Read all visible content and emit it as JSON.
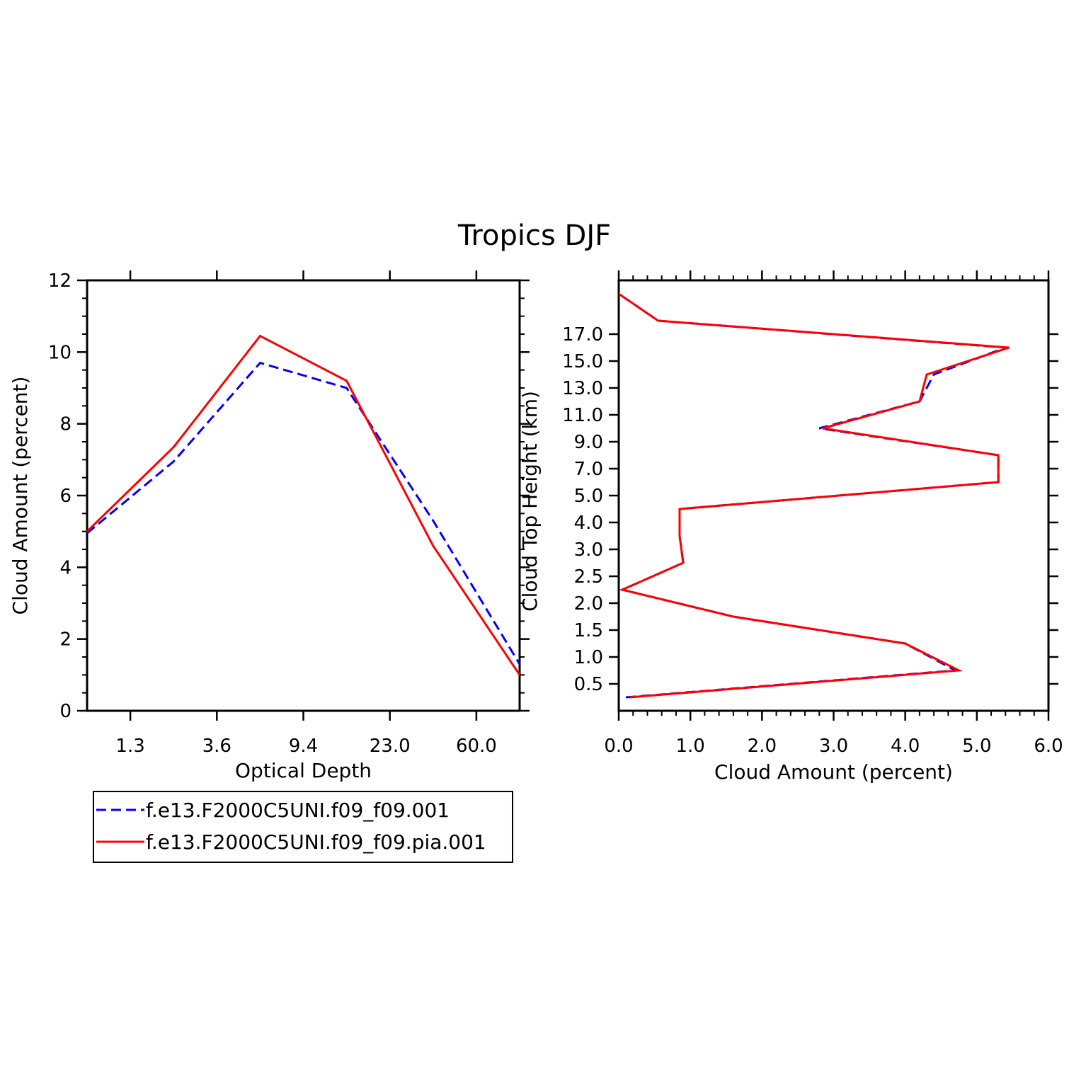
{
  "title": "Tropics DJF",
  "colors": {
    "series_a": "#0000ff",
    "series_b": "#ff0000"
  },
  "legend": [
    {
      "label": "f.e13.F2000C5UNI.f09_f09.001",
      "color": "#0000ff",
      "dash": true
    },
    {
      "label": "f.e13.F2000C5UNI.f09_f09.pia.001",
      "color": "#ff0000",
      "dash": false
    }
  ],
  "chart_data": [
    {
      "type": "line",
      "xlabel": "Optical Depth",
      "ylabel": "Cloud Amount (percent)",
      "x_tick_labels": [
        "1.3",
        "3.6",
        "9.4",
        "23.0",
        "60.0"
      ],
      "x": [
        1,
        2,
        3,
        4,
        5,
        6
      ],
      "ylim": [
        0,
        12
      ],
      "y_ticks": [
        "0",
        "2",
        "4",
        "6",
        "8",
        "10",
        "12"
      ],
      "series": [
        {
          "name": "f.e13.F2000C5UNI.f09_f09.001",
          "values": [
            4.95,
            6.95,
            9.7,
            9.0,
            5.3,
            1.3
          ]
        },
        {
          "name": "f.e13.F2000C5UNI.f09_f09.pia.001",
          "values": [
            5.0,
            7.35,
            10.45,
            9.2,
            4.6,
            1.0
          ]
        }
      ]
    },
    {
      "type": "line",
      "xlabel": "Cloud Amount (percent)",
      "ylabel": "Cloud Top Height (km)",
      "xlim": [
        0,
        6
      ],
      "x_ticks": [
        "0.0",
        "1.0",
        "2.0",
        "3.0",
        "4.0",
        "5.0",
        "6.0"
      ],
      "y_tick_labels": [
        "0.5",
        "1.0",
        "1.5",
        "2.0",
        "2.5",
        "3.0",
        "4.0",
        "5.0",
        "7.0",
        "9.0",
        "11.0",
        "13.0",
        "15.0",
        "17.0"
      ],
      "y": [
        0,
        1,
        2,
        3,
        4,
        5,
        6,
        7,
        8,
        9,
        10,
        11,
        12,
        13,
        14,
        15
      ],
      "series": [
        {
          "name": "f.e13.F2000C5UNI.f09_f09.001",
          "values": [
            0.1,
            4.7,
            4.0,
            1.6,
            0.05,
            0.9,
            0.85,
            0.85,
            5.3,
            5.3,
            2.8,
            4.2,
            4.4,
            5.4,
            0.55,
            0.0
          ]
        },
        {
          "name": "f.e13.F2000C5UNI.f09_f09.pia.001",
          "values": [
            0.15,
            4.75,
            4.0,
            1.6,
            0.05,
            0.9,
            0.85,
            0.85,
            5.3,
            5.3,
            2.85,
            4.2,
            4.3,
            5.45,
            0.55,
            0.0
          ]
        }
      ]
    }
  ]
}
